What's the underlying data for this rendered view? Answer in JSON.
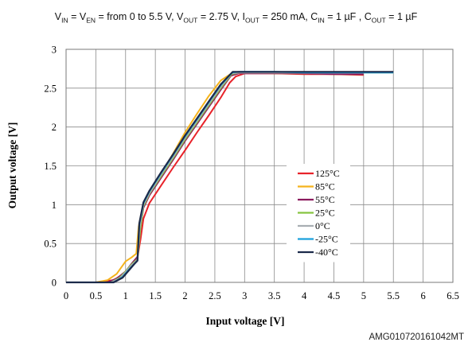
{
  "conditions": {
    "vin": "V",
    "vin_sub": "IN",
    "ven": " = V",
    "ven_sub": "EN",
    "range": " = from 0 to 5.5 V, V",
    "vout_sub": "OUT",
    "vout": " = 2.75 V, I",
    "iout_sub": "OUT",
    "iout": " = 250 mA,  C",
    "cin_sub": "IN",
    "cin": " = 1 µF , C",
    "cout_sub": "OUT",
    "cout": " = 1 µF"
  },
  "doc_code": "AMG010720161042MT",
  "chart_data": {
    "type": "line",
    "xlabel": "Input voltage [V]",
    "ylabel": "Output voltage [V]",
    "xlim": [
      0,
      6.5
    ],
    "ylim": [
      0,
      3
    ],
    "xticks": [
      "0",
      "0.5",
      "1",
      "1.5",
      "2",
      "2.5",
      "3",
      "3.5",
      "4",
      "4.5",
      "5",
      "5.5",
      "6",
      "6.5"
    ],
    "yticks": [
      "0",
      "0.5",
      "1",
      "1.5",
      "2",
      "2.5",
      "3"
    ],
    "grid": true,
    "legend_position": "right-inside",
    "series": [
      {
        "name": "125°C",
        "color": "#e8232a",
        "x": [
          0,
          0.5,
          0.8,
          0.95,
          1.1,
          1.2,
          1.25,
          1.3,
          1.4,
          1.6,
          1.8,
          2.0,
          2.2,
          2.4,
          2.6,
          2.75,
          2.85,
          3.0,
          3.5,
          4.0,
          4.5,
          5.0
        ],
        "y": [
          0,
          0,
          0.03,
          0.1,
          0.22,
          0.32,
          0.55,
          0.82,
          1.02,
          1.25,
          1.48,
          1.7,
          1.93,
          2.15,
          2.38,
          2.57,
          2.65,
          2.69,
          2.69,
          2.68,
          2.68,
          2.67
        ]
      },
      {
        "name": "85°C",
        "color": "#f5b31c",
        "x": [
          0,
          0.5,
          0.7,
          0.85,
          1.0,
          1.1,
          1.18,
          1.22,
          1.3,
          1.4,
          1.6,
          1.8,
          2.0,
          2.2,
          2.4,
          2.6,
          2.78,
          2.9,
          3.5,
          4.0,
          4.5,
          5.0
        ],
        "y": [
          0,
          0,
          0.03,
          0.11,
          0.27,
          0.32,
          0.37,
          0.72,
          1.02,
          1.14,
          1.4,
          1.66,
          1.93,
          2.17,
          2.4,
          2.6,
          2.69,
          2.7,
          2.69,
          2.69,
          2.68,
          2.68
        ]
      },
      {
        "name": "55°C",
        "color": "#8b1a5e",
        "x": [
          0,
          0.7,
          0.85,
          1.0,
          1.1,
          1.2,
          1.25,
          1.3,
          1.4,
          1.6,
          1.8,
          2.0,
          2.2,
          2.4,
          2.6,
          2.77,
          2.9,
          3.5,
          4.0,
          4.5,
          5.0
        ],
        "y": [
          0,
          0,
          0.05,
          0.14,
          0.24,
          0.33,
          0.7,
          0.96,
          1.12,
          1.35,
          1.58,
          1.82,
          2.04,
          2.26,
          2.48,
          2.66,
          2.69,
          2.69,
          2.69,
          2.68,
          2.68
        ]
      },
      {
        "name": "25°C",
        "color": "#86c440",
        "x": [
          0,
          0.75,
          0.9,
          1.0,
          1.1,
          1.2,
          1.25,
          1.3,
          1.4,
          1.6,
          1.8,
          2.0,
          2.2,
          2.4,
          2.6,
          2.78,
          2.9,
          3.5,
          4.0,
          4.5,
          5.0,
          5.5
        ],
        "y": [
          0,
          0,
          0.06,
          0.14,
          0.23,
          0.3,
          0.7,
          0.98,
          1.14,
          1.37,
          1.6,
          1.84,
          2.06,
          2.28,
          2.5,
          2.68,
          2.7,
          2.7,
          2.7,
          2.7,
          2.7,
          2.7
        ]
      },
      {
        "name": "0°C",
        "color": "#a8aeb3",
        "x": [
          0,
          0.75,
          0.9,
          1.0,
          1.1,
          1.2,
          1.24,
          1.3,
          1.4,
          1.6,
          1.8,
          2.0,
          2.2,
          2.4,
          2.6,
          2.78,
          2.9,
          3.5,
          4.0,
          4.5,
          5.0,
          5.5
        ],
        "y": [
          0,
          0,
          0.05,
          0.13,
          0.22,
          0.29,
          0.72,
          1.0,
          1.15,
          1.39,
          1.62,
          1.86,
          2.08,
          2.3,
          2.52,
          2.69,
          2.7,
          2.7,
          2.7,
          2.7,
          2.7,
          2.7
        ]
      },
      {
        "name": "-25°C",
        "color": "#1aa0dc",
        "x": [
          0,
          0.8,
          0.95,
          1.05,
          1.15,
          1.2,
          1.23,
          1.3,
          1.4,
          1.6,
          1.8,
          2.0,
          2.2,
          2.4,
          2.6,
          2.79,
          2.9,
          3.5,
          4.0,
          4.5,
          5.0,
          5.5
        ],
        "y": [
          0,
          0,
          0.07,
          0.16,
          0.24,
          0.28,
          0.74,
          1.02,
          1.17,
          1.41,
          1.64,
          1.88,
          2.1,
          2.32,
          2.54,
          2.7,
          2.71,
          2.71,
          2.7,
          2.7,
          2.7,
          2.7
        ]
      },
      {
        "name": "-40°C",
        "color": "#1b2a4a",
        "x": [
          0,
          0.8,
          0.95,
          1.05,
          1.15,
          1.2,
          1.23,
          1.3,
          1.4,
          1.6,
          1.8,
          2.0,
          2.2,
          2.4,
          2.6,
          2.8,
          2.9,
          3.5,
          4.0,
          4.5,
          5.0,
          5.5
        ],
        "y": [
          0,
          0,
          0.06,
          0.15,
          0.24,
          0.28,
          0.76,
          1.03,
          1.18,
          1.42,
          1.65,
          1.89,
          2.11,
          2.33,
          2.55,
          2.71,
          2.71,
          2.71,
          2.71,
          2.71,
          2.71,
          2.71
        ]
      }
    ]
  }
}
